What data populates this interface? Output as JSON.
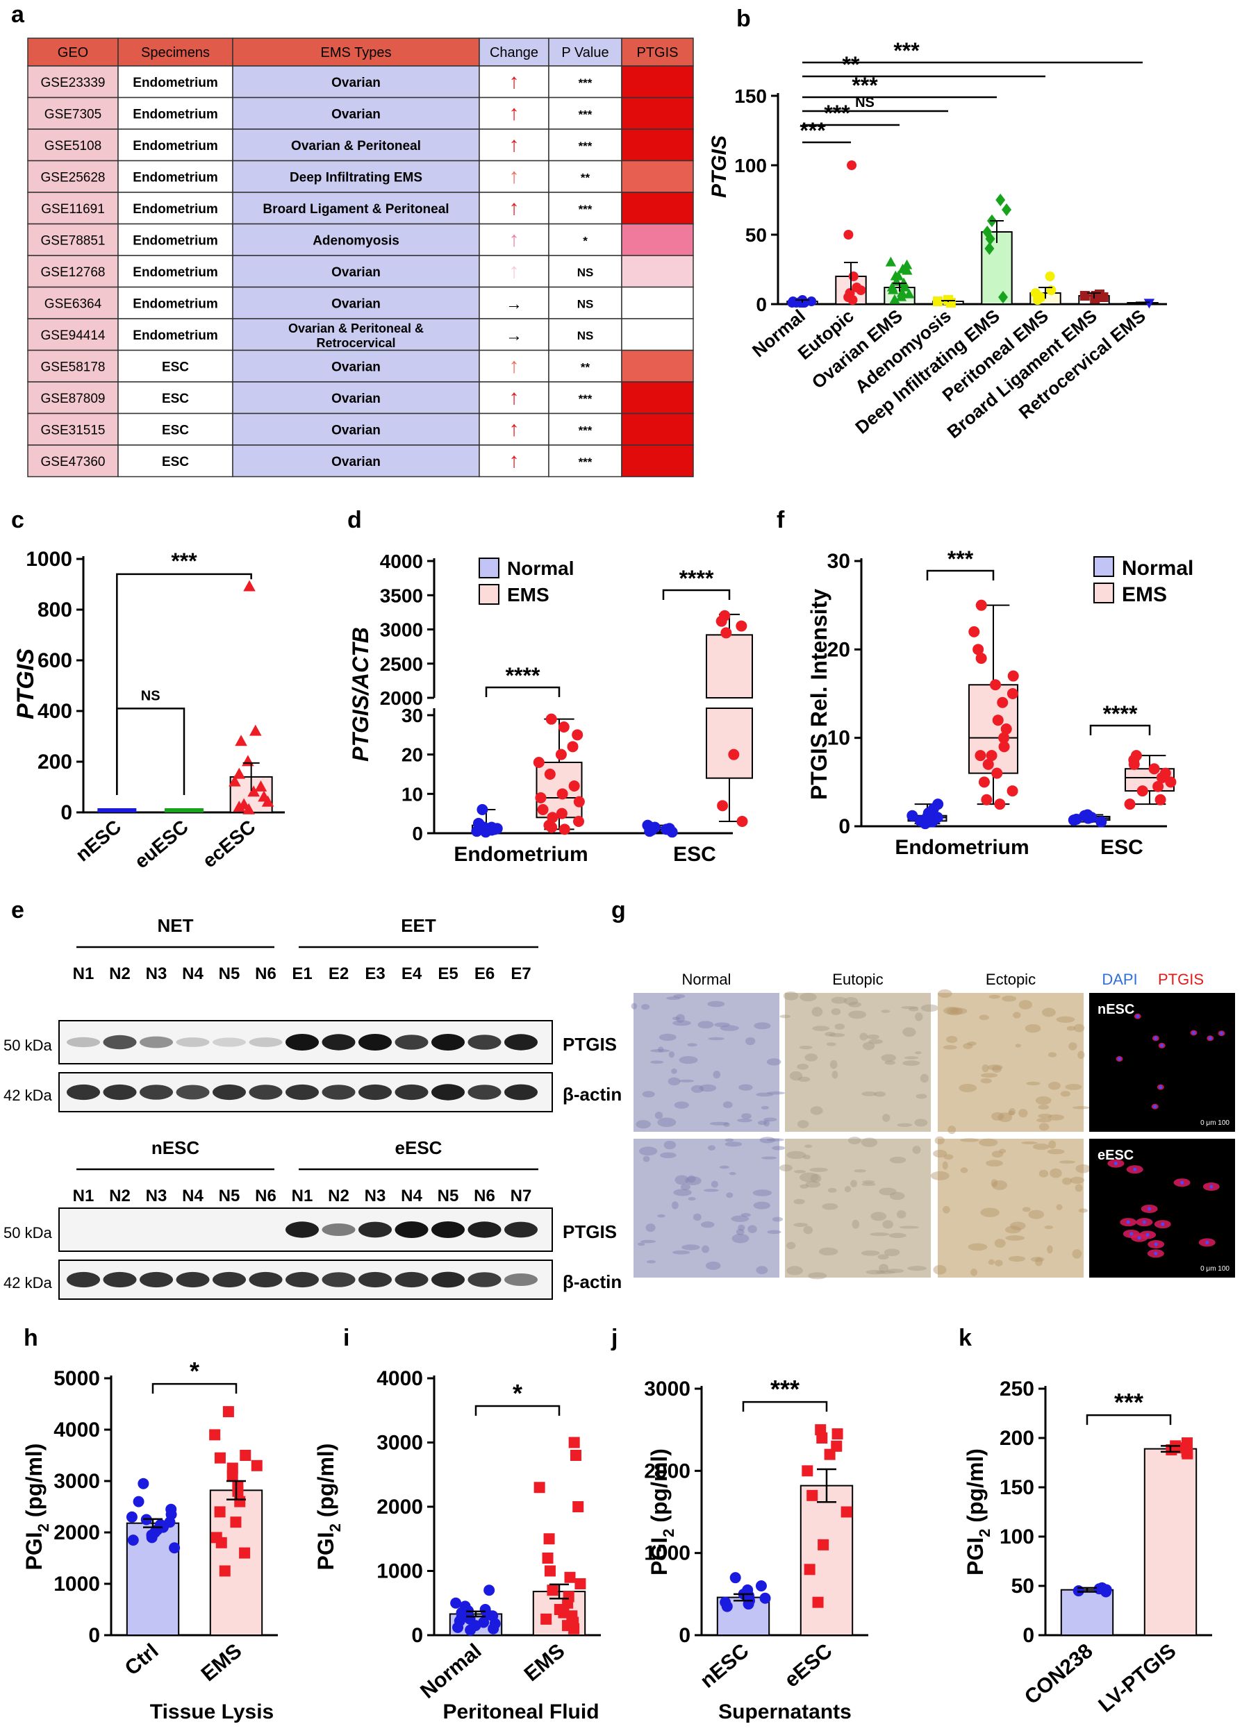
{
  "panel_labels": [
    "a",
    "b",
    "c",
    "d",
    "e",
    "f",
    "g",
    "h",
    "i",
    "j",
    "k"
  ],
  "colors": {
    "blue": "#1b1be0",
    "red": "#ee1c25",
    "green": "#17a31b",
    "lightgreen": "#c8f7c5",
    "yellow": "#f4f000",
    "darkred": "#a01c1c",
    "lightblue": "#c2c4f5",
    "pink": "#fcdbdb",
    "header": "#e15b4a",
    "specimen": "#c9cbf0",
    "geo": "#f2c7cd"
  },
  "table": {
    "headers": [
      "GEO",
      "Specimens",
      "EMS Types",
      "Change",
      "P Value",
      "PTGIS"
    ],
    "rows": [
      {
        "geo": "GSE23339",
        "specimen": "Endometrium",
        "type": [
          "Ovarian"
        ],
        "change": "↑",
        "arrow_color": "#e8151b",
        "p": "***",
        "heat": "#e10b0b"
      },
      {
        "geo": "GSE7305",
        "specimen": "Endometrium",
        "type": [
          "Ovarian"
        ],
        "change": "↑",
        "arrow_color": "#e8151b",
        "p": "***",
        "heat": "#e10b0b"
      },
      {
        "geo": "GSE5108",
        "specimen": "Endometrium",
        "type": [
          "Ovarian & Peritoneal"
        ],
        "change": "↑",
        "arrow_color": "#e8151b",
        "p": "***",
        "heat": "#e10b0b"
      },
      {
        "geo": "GSE25628",
        "specimen": "Endometrium",
        "type": [
          "Deep Infiltrating EMS"
        ],
        "change": "↑",
        "arrow_color": "#ee6a5b",
        "p": "**",
        "heat": "#e65f50"
      },
      {
        "geo": "GSE11691",
        "specimen": "Endometrium",
        "type": [
          "Broard Ligament & Peritoneal"
        ],
        "change": "↑",
        "arrow_color": "#e8151b",
        "p": "***",
        "heat": "#e10b0b"
      },
      {
        "geo": "GSE78851",
        "specimen": "Endometrium",
        "type": [
          "Adenomyosis"
        ],
        "change": "↑",
        "arrow_color": "#ef7fa0",
        "p": "*",
        "heat": "#ef7a9c"
      },
      {
        "geo": "GSE12768",
        "specimen": "Endometrium",
        "type": [
          "Ovarian"
        ],
        "change": "↑",
        "arrow_color": "#f6cbd6",
        "p": "NS",
        "heat": "#f6cfd9"
      },
      {
        "geo": "GSE6364",
        "specimen": "Endometrium",
        "type": [
          "Ovarian"
        ],
        "change": "→",
        "arrow_color": "#000000",
        "p": "NS",
        "heat": "#ffffff"
      },
      {
        "geo": "GSE94414",
        "specimen": "Endometrium",
        "type": [
          "Ovarian  & Peritoneal &",
          "Retrocervical"
        ],
        "change": "→",
        "arrow_color": "#000000",
        "p": "NS",
        "heat": "#ffffff"
      },
      {
        "geo": "GSE58178",
        "specimen": "ESC",
        "type": [
          "Ovarian"
        ],
        "change": "↑",
        "arrow_color": "#ee6a5b",
        "p": "**",
        "heat": "#e65f50"
      },
      {
        "geo": "GSE87809",
        "specimen": "ESC",
        "type": [
          "Ovarian"
        ],
        "change": "↑",
        "arrow_color": "#e8151b",
        "p": "***",
        "heat": "#e10b0b"
      },
      {
        "geo": "GSE31515",
        "specimen": "ESC",
        "type": [
          "Ovarian"
        ],
        "change": "↑",
        "arrow_color": "#e8151b",
        "p": "***",
        "heat": "#e10b0b"
      },
      {
        "geo": "GSE47360",
        "specimen": "ESC",
        "type": [
          "Ovarian"
        ],
        "change": "↑",
        "arrow_color": "#e8151b",
        "p": "***",
        "heat": "#e10b0b"
      }
    ]
  },
  "chart_data": [
    {
      "panel": "b",
      "type": "bar",
      "ylabel": "PTGIS",
      "ylim": [
        0,
        150
      ],
      "yticks": [
        0,
        50,
        100,
        150
      ],
      "categories": [
        "Normal",
        "Eutopic",
        "Ovarian EMS",
        "Adenomyosis",
        "Deep Infiltrating EMS",
        "Peritoneal EMS",
        "Broard Ligament EMS",
        "Retrocervical EMS"
      ],
      "values": [
        2,
        20,
        12,
        2,
        52,
        8,
        6,
        1
      ],
      "errors": [
        1,
        10,
        3,
        0.5,
        8,
        4,
        2,
        0.3
      ],
      "comparisons": [
        {
          "groups": [
            0,
            1
          ],
          "label": "***"
        },
        {
          "groups": [
            0,
            2
          ],
          "label": "***"
        },
        {
          "groups": [
            0,
            3
          ],
          "label": "NS"
        },
        {
          "groups": [
            0,
            4
          ],
          "label": "***"
        },
        {
          "groups": [
            0,
            5
          ],
          "label": "**"
        },
        {
          "groups": [
            0,
            7
          ],
          "label": "***"
        }
      ]
    },
    {
      "panel": "c",
      "type": "bar",
      "ylabel": "PTGIS",
      "ylim": [
        0,
        1000
      ],
      "yticks": [
        0,
        200,
        400,
        600,
        800,
        1000
      ],
      "categories": [
        "nESC",
        "euESC",
        "ecESC"
      ],
      "values": [
        1,
        1,
        140
      ],
      "errors": [
        0.5,
        0.5,
        55
      ],
      "comparisons": [
        {
          "groups": [
            0,
            1
          ],
          "label": "NS"
        },
        {
          "groups": [
            0,
            2
          ],
          "label": "***"
        }
      ]
    },
    {
      "panel": "d",
      "type": "box",
      "ylabel": "PTGIS/ACTB",
      "legend": [
        "Normal",
        "EMS"
      ],
      "yticks_low": [
        0,
        10,
        20,
        30
      ],
      "yticks_high": [
        2000,
        2500,
        3000,
        3500,
        4000
      ],
      "categories": [
        "Endometrium",
        "ESC"
      ],
      "comparisons": [
        {
          "group": "Endometrium",
          "label": "****"
        },
        {
          "group": "ESC",
          "label": "****"
        }
      ]
    },
    {
      "panel": "f",
      "type": "box",
      "ylabel": "PTGIS Rel. Intensity",
      "ylim": [
        0,
        30
      ],
      "yticks": [
        0,
        10,
        20,
        30
      ],
      "legend": [
        "Normal",
        "EMS"
      ],
      "categories": [
        "Endometrium",
        "ESC"
      ],
      "comparisons": [
        {
          "group": "Endometrium",
          "label": "***"
        },
        {
          "group": "ESC",
          "label": "****"
        }
      ]
    },
    {
      "panel": "h",
      "type": "bar",
      "ylabel": "PGI",
      "ylabel_sub": "2",
      "ylabel_unit": "(pg/ml)",
      "xlabel": "Tissue Lysis",
      "ylim": [
        0,
        5000
      ],
      "yticks": [
        0,
        1000,
        2000,
        3000,
        4000,
        5000
      ],
      "categories": [
        "Ctrl",
        "EMS"
      ],
      "values": [
        2180,
        2820
      ],
      "errors": [
        80,
        180
      ],
      "comparisons": [
        {
          "groups": [
            0,
            1
          ],
          "label": "*"
        }
      ]
    },
    {
      "panel": "i",
      "type": "bar",
      "ylabel": "PGI",
      "ylabel_sub": "2",
      "ylabel_unit": "(pg/ml)",
      "xlabel": "Peritoneal Fluid",
      "ylim": [
        0,
        4000
      ],
      "yticks": [
        0,
        1000,
        2000,
        3000,
        4000
      ],
      "categories": [
        "Normal",
        "EMS"
      ],
      "values": [
        330,
        680
      ],
      "errors": [
        40,
        110
      ],
      "comparisons": [
        {
          "groups": [
            0,
            1
          ],
          "label": "*"
        }
      ]
    },
    {
      "panel": "j",
      "type": "bar",
      "ylabel": "PGI",
      "ylabel_sub": "2",
      "ylabel_unit": "(pg/ml)",
      "xlabel": "Supernatants",
      "ylim": [
        0,
        3000
      ],
      "yticks": [
        0,
        1000,
        2000,
        3000
      ],
      "categories": [
        "nESC",
        "eESC"
      ],
      "values": [
        460,
        1820
      ],
      "errors": [
        40,
        200
      ],
      "comparisons": [
        {
          "groups": [
            0,
            1
          ],
          "label": "***"
        }
      ]
    },
    {
      "panel": "k",
      "type": "bar",
      "ylabel": "PGI",
      "ylabel_sub": "2",
      "ylabel_unit": "(pg/ml)",
      "ylim": [
        0,
        250
      ],
      "yticks": [
        0,
        50,
        100,
        150,
        200,
        250
      ],
      "categories": [
        "CON238",
        "LV-PTGIS"
      ],
      "values": [
        46,
        189
      ],
      "errors": [
        2,
        3
      ],
      "comparisons": [
        {
          "groups": [
            0,
            1
          ],
          "label": "***"
        }
      ]
    }
  ],
  "blots": {
    "top": {
      "group1": "NET",
      "group2": "EET",
      "lanes": [
        "N1",
        "N2",
        "N3",
        "N4",
        "N5",
        "N6",
        "E1",
        "E2",
        "E3",
        "E4",
        "E5",
        "E6",
        "E7"
      ]
    },
    "bottom": {
      "group1": "nESC",
      "group2": "eESC",
      "lanes": [
        "N1",
        "N2",
        "N3",
        "N4",
        "N5",
        "N6",
        "N1",
        "N2",
        "N3",
        "N4",
        "N5",
        "N6",
        "N7"
      ]
    },
    "band1_label": "PTGIS",
    "band2_label": "β-actin",
    "kda1": "50 kDa",
    "kda2": "42 kDa"
  },
  "micro": {
    "cols": [
      "Normal",
      "Eutopic",
      "Ectopic"
    ],
    "dapi": "DAPI",
    "ptgis": "PTGIS",
    "if_labels": [
      "nESC",
      "eESC"
    ],
    "scale": "0 μm 100"
  }
}
